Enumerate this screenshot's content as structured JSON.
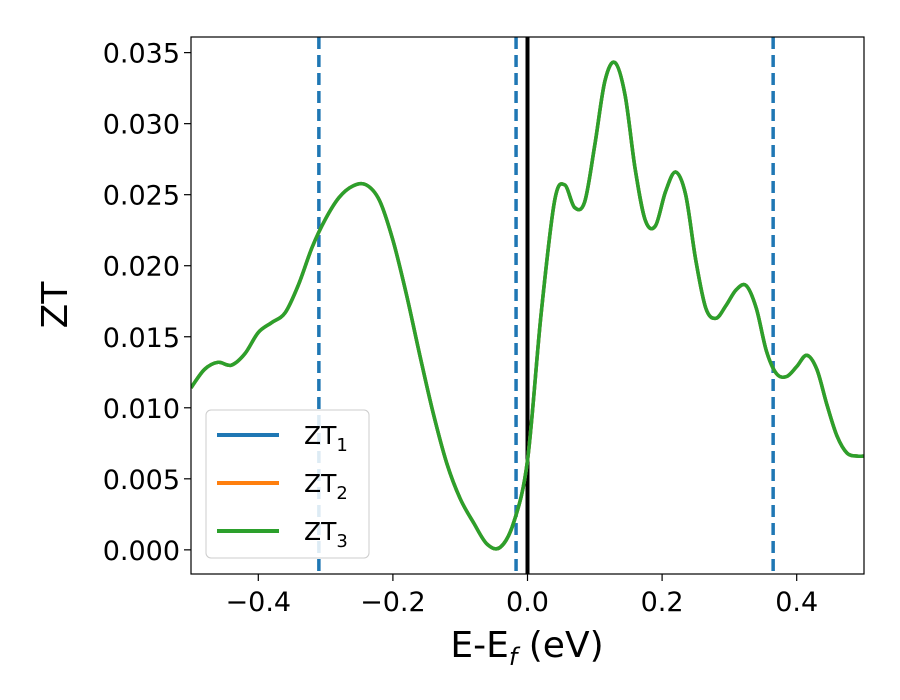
{
  "chart_data": {
    "type": "line",
    "xlabel": "E-E",
    "xlabel_sub": "f",
    "xlabel_unit": " (eV)",
    "ylabel": "ZT",
    "xlim": [
      -0.5,
      0.5
    ],
    "ylim": [
      -0.0017,
      0.0361
    ],
    "xticks": [
      {
        "value": -0.4,
        "label": "−0.4"
      },
      {
        "value": -0.2,
        "label": "−0.2"
      },
      {
        "value": 0.0,
        "label": "0.0"
      },
      {
        "value": 0.2,
        "label": "0.2"
      },
      {
        "value": 0.4,
        "label": "0.4"
      }
    ],
    "yticks": [
      {
        "value": 0.0,
        "label": "0.000"
      },
      {
        "value": 0.005,
        "label": "0.005"
      },
      {
        "value": 0.01,
        "label": "0.010"
      },
      {
        "value": 0.015,
        "label": "0.015"
      },
      {
        "value": 0.02,
        "label": "0.020"
      },
      {
        "value": 0.025,
        "label": "0.025"
      },
      {
        "value": 0.03,
        "label": "0.030"
      },
      {
        "value": 0.035,
        "label": "0.035"
      }
    ],
    "grid": false,
    "legend_position": "lower-left",
    "vertical_lines": [
      {
        "x": -0.31,
        "style": "dashed",
        "color": "#1f77b4"
      },
      {
        "x": -0.017,
        "style": "dashed",
        "color": "#1f77b4"
      },
      {
        "x": 0.0,
        "style": "solid",
        "color": "#000000"
      },
      {
        "x": 0.365,
        "style": "dashed",
        "color": "#1f77b4"
      }
    ],
    "x": [
      -0.5,
      -0.48,
      -0.46,
      -0.44,
      -0.42,
      -0.4,
      -0.38,
      -0.36,
      -0.34,
      -0.32,
      -0.3,
      -0.28,
      -0.26,
      -0.24,
      -0.22,
      -0.2,
      -0.18,
      -0.16,
      -0.14,
      -0.12,
      -0.1,
      -0.08,
      -0.06,
      -0.04,
      -0.02,
      0.0,
      0.02,
      0.04,
      0.055,
      0.07,
      0.085,
      0.1,
      0.115,
      0.13,
      0.145,
      0.16,
      0.175,
      0.19,
      0.205,
      0.22,
      0.235,
      0.25,
      0.265,
      0.28,
      0.295,
      0.31,
      0.325,
      0.34,
      0.355,
      0.37,
      0.385,
      0.4,
      0.415,
      0.43,
      0.445,
      0.46,
      0.475,
      0.49,
      0.5
    ],
    "series": [
      {
        "name": "ZT",
        "sub": "1",
        "color": "#1f77b4",
        "values": [
          0.0114,
          0.0127,
          0.0132,
          0.013,
          0.0138,
          0.0153,
          0.016,
          0.0167,
          0.0187,
          0.0213,
          0.0233,
          0.0248,
          0.0256,
          0.0257,
          0.0246,
          0.0218,
          0.018,
          0.0137,
          0.0096,
          0.0061,
          0.0036,
          0.0019,
          0.0004,
          0.0002,
          0.002,
          0.0063,
          0.0165,
          0.0245,
          0.0257,
          0.0241,
          0.0245,
          0.0285,
          0.033,
          0.0343,
          0.032,
          0.0268,
          0.0232,
          0.0228,
          0.0252,
          0.0266,
          0.025,
          0.0204,
          0.017,
          0.0163,
          0.0172,
          0.0183,
          0.0186,
          0.017,
          0.014,
          0.0124,
          0.0122,
          0.0129,
          0.0137,
          0.0127,
          0.0102,
          0.008,
          0.0068,
          0.0066,
          0.0066
        ]
      },
      {
        "name": "ZT",
        "sub": "2",
        "color": "#ff7f0e",
        "values": [
          0.0114,
          0.0127,
          0.0132,
          0.013,
          0.0138,
          0.0153,
          0.016,
          0.0167,
          0.0187,
          0.0213,
          0.0233,
          0.0248,
          0.0256,
          0.0257,
          0.0246,
          0.0218,
          0.018,
          0.0137,
          0.0096,
          0.0061,
          0.0036,
          0.0019,
          0.0004,
          0.0002,
          0.002,
          0.0063,
          0.0165,
          0.0245,
          0.0257,
          0.0241,
          0.0245,
          0.0285,
          0.033,
          0.0343,
          0.032,
          0.0268,
          0.0232,
          0.0228,
          0.0252,
          0.0266,
          0.025,
          0.0204,
          0.017,
          0.0163,
          0.0172,
          0.0183,
          0.0186,
          0.017,
          0.014,
          0.0124,
          0.0122,
          0.0129,
          0.0137,
          0.0127,
          0.0102,
          0.008,
          0.0068,
          0.0066,
          0.0066
        ]
      },
      {
        "name": "ZT",
        "sub": "3",
        "color": "#2ca02c",
        "values": [
          0.0114,
          0.0127,
          0.0132,
          0.013,
          0.0138,
          0.0153,
          0.016,
          0.0167,
          0.0187,
          0.0213,
          0.0233,
          0.0248,
          0.0256,
          0.0257,
          0.0246,
          0.0218,
          0.018,
          0.0137,
          0.0096,
          0.0061,
          0.0036,
          0.0019,
          0.0004,
          0.0002,
          0.002,
          0.0063,
          0.0165,
          0.0245,
          0.0257,
          0.0241,
          0.0245,
          0.0285,
          0.033,
          0.0343,
          0.032,
          0.0268,
          0.0232,
          0.0228,
          0.0252,
          0.0266,
          0.025,
          0.0204,
          0.017,
          0.0163,
          0.0172,
          0.0183,
          0.0186,
          0.017,
          0.014,
          0.0124,
          0.0122,
          0.0129,
          0.0137,
          0.0127,
          0.0102,
          0.008,
          0.0068,
          0.0066,
          0.0066
        ]
      }
    ]
  }
}
